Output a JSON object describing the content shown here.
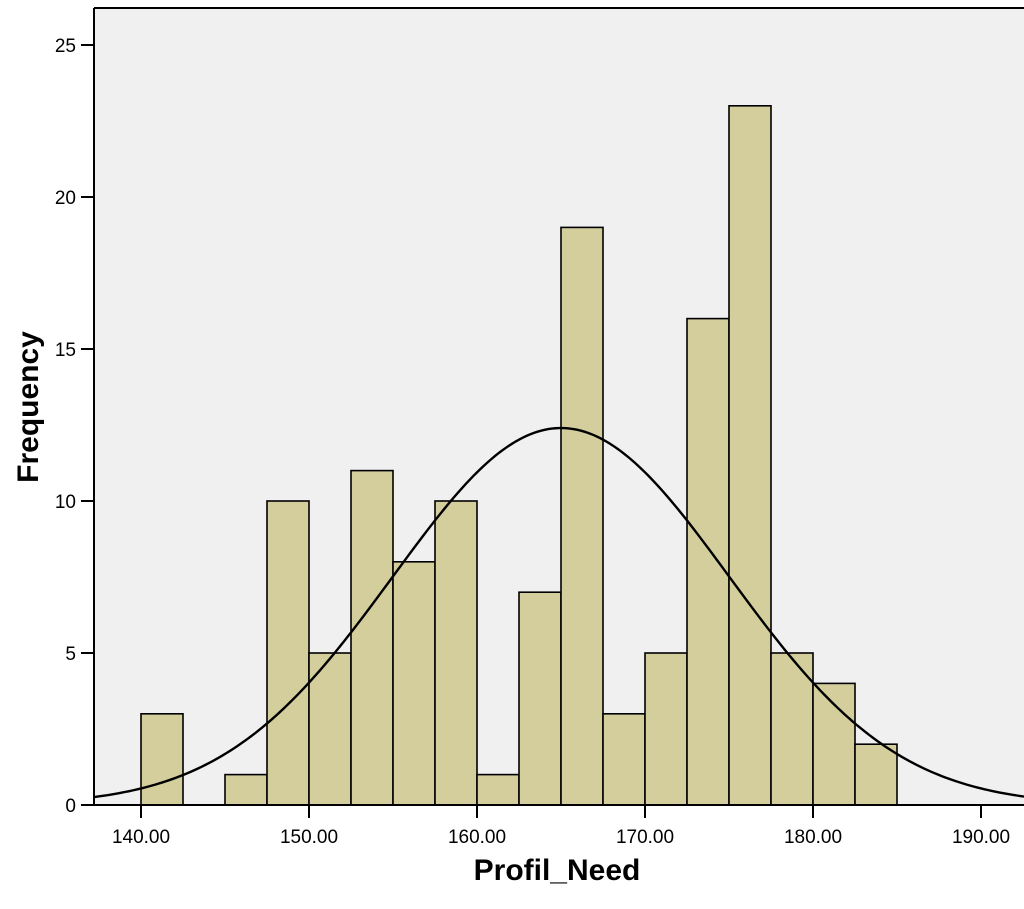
{
  "chart_data": {
    "type": "bar",
    "subtype": "histogram",
    "xlabel": "Profil_Need",
    "ylabel": "Frequency",
    "xlim": [
      137.2,
      1000
    ],
    "ylim": [
      0,
      26
    ],
    "x_ticks": [
      {
        "value": 140,
        "label": "140.00"
      },
      {
        "value": 150,
        "label": "150.00"
      },
      {
        "value": 160,
        "label": "160.00"
      },
      {
        "value": 170,
        "label": "170.00"
      },
      {
        "value": 180,
        "label": "180.00"
      },
      {
        "value": 190,
        "label": "190.00"
      }
    ],
    "y_ticks": [
      {
        "value": 0,
        "label": "0"
      },
      {
        "value": 5,
        "label": "5"
      },
      {
        "value": 10,
        "label": "10"
      },
      {
        "value": 15,
        "label": "15"
      },
      {
        "value": 20,
        "label": "20"
      },
      {
        "value": 25,
        "label": "25"
      }
    ],
    "bin_width": 2.5,
    "bins": [
      {
        "start": 140.0,
        "end": 142.5,
        "count": 3
      },
      {
        "start": 145.0,
        "end": 147.5,
        "count": 1
      },
      {
        "start": 147.5,
        "end": 150.0,
        "count": 10
      },
      {
        "start": 150.0,
        "end": 152.5,
        "count": 5
      },
      {
        "start": 152.5,
        "end": 155.0,
        "count": 11
      },
      {
        "start": 155.0,
        "end": 157.5,
        "count": 8
      },
      {
        "start": 157.5,
        "end": 160.0,
        "count": 10
      },
      {
        "start": 160.0,
        "end": 162.5,
        "count": 1
      },
      {
        "start": 162.5,
        "end": 165.0,
        "count": 7
      },
      {
        "start": 165.0,
        "end": 167.5,
        "count": 19
      },
      {
        "start": 167.5,
        "end": 170.0,
        "count": 3
      },
      {
        "start": 170.0,
        "end": 172.5,
        "count": 5
      },
      {
        "start": 172.5,
        "end": 175.0,
        "count": 16
      },
      {
        "start": 175.0,
        "end": 177.5,
        "count": 23
      },
      {
        "start": 177.5,
        "end": 180.0,
        "count": 5
      },
      {
        "start": 180.0,
        "end": 182.5,
        "count": 4
      },
      {
        "start": 182.5,
        "end": 185.0,
        "count": 2
      }
    ],
    "normal_curve": {
      "mean": 165.0,
      "std_dev": 10.0,
      "peak": 12.4
    },
    "grid": false,
    "colors": {
      "bar_fill": "#D3CE9B",
      "bar_stroke": "#000000",
      "plot_background": "#F0F0F0",
      "curve": "#000000"
    }
  }
}
